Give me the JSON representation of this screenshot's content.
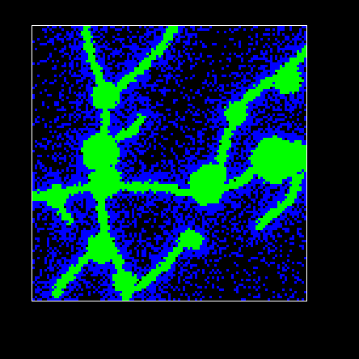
{
  "simulation": {
    "grid_cells": 113,
    "colors": {
      "background": "#000000",
      "empty_cell": "#000000",
      "sparse_cell": "#0000ff",
      "dense_cell": "#00ff00",
      "frame_border": "#ffffff"
    }
  }
}
